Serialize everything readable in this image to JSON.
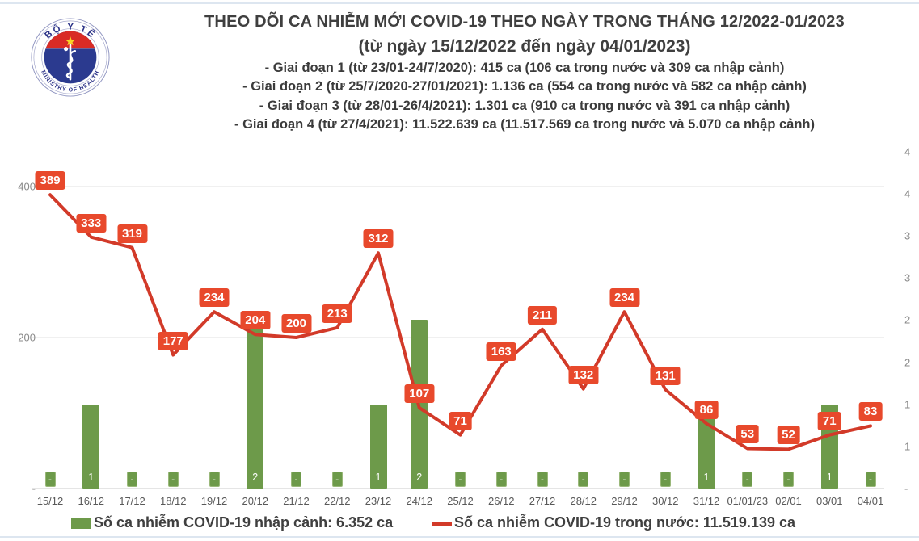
{
  "header": {
    "logo": {
      "top_text": "BỘ Y TẾ",
      "bottom_text": "MINISTRY OF HEALTH"
    },
    "title": "THEO DÕI CA NHIỄM MỚI COVID-19 THEO NGÀY TRONG THÁNG 12/2022-01/2023",
    "subtitle": "(từ ngày 15/12/2022 đến ngày 04/01/2023)",
    "phases": [
      "- Giai đoạn 1 (từ 23/01-24/7/2020): 415 ca (106 ca trong nước và 309 ca nhập cảnh)",
      "- Giai đoạn 2 (từ 25/7/2020-27/01/2021): 1.136 ca (554 ca trong nước và 582 ca nhập cảnh)",
      "- Giai đoạn 3 (từ 28/01-26/4/2021): 1.301 ca (910 ca trong nước và 391 ca nhập cảnh)",
      "- Giai đoạn 4 (từ 27/4/2021): 11.522.639 ca (11.517.569 ca trong nước và 5.070 ca nhập cảnh)"
    ]
  },
  "chart_data": {
    "type": "combo",
    "categories": [
      "15/12",
      "16/12",
      "17/12",
      "18/12",
      "19/12",
      "20/12",
      "21/12",
      "22/12",
      "23/12",
      "24/12",
      "25/12",
      "26/12",
      "27/12",
      "28/12",
      "29/12",
      "30/12",
      "31/12",
      "01/01/23",
      "02/01",
      "03/01",
      "04/01"
    ],
    "series": [
      {
        "name": "Số ca nhiễm COVID-19 nhập cảnh",
        "type": "bar",
        "axis": "right",
        "values": [
          0,
          1,
          0,
          0,
          0,
          2,
          0,
          0,
          1,
          2,
          0,
          0,
          0,
          0,
          0,
          0,
          1,
          0,
          0,
          1,
          0
        ],
        "value_labels": [
          "-",
          "1",
          "-",
          "-",
          "-",
          "2",
          "-",
          "-",
          "1",
          "2",
          "-",
          "-",
          "-",
          "-",
          "-",
          "-",
          "1",
          "-",
          "-",
          "1",
          "-"
        ],
        "color": "#6d9a4a"
      },
      {
        "name": "Số ca nhiễm COVID-19 trong nước",
        "type": "line",
        "axis": "left",
        "values": [
          389,
          333,
          319,
          177,
          234,
          204,
          200,
          213,
          312,
          107,
          71,
          163,
          211,
          132,
          234,
          131,
          86,
          53,
          52,
          71,
          83
        ],
        "value_labels": [
          "389",
          "333",
          "319",
          "177",
          "234",
          "204",
          "200",
          "213",
          "312",
          "107",
          "71",
          "163",
          "211",
          "132",
          "234",
          "131",
          "86",
          "53",
          "52",
          "71",
          "83"
        ],
        "color": "#d23a29",
        "label_bg": "#e8492c"
      }
    ],
    "left_axis": {
      "ticks": [
        {
          "label": "400",
          "value": 400
        },
        {
          "label": "200",
          "value": 200
        },
        {
          "label": "-",
          "value": 0
        }
      ],
      "max": 450
    },
    "right_axis": {
      "max": 4,
      "tick_step": 0.5,
      "labels_top_to_bottom": [
        "4",
        "4",
        "3",
        "3",
        "2",
        "2",
        "1",
        "1",
        "-"
      ]
    },
    "legend": [
      {
        "swatch": "bar",
        "label": "Số ca nhiễm COVID-19 nhập cảnh: 6.352 ca"
      },
      {
        "swatch": "line",
        "label": "Số ca nhiễm COVID-19 trong nước: 11.519.139 ca"
      }
    ],
    "grid": "horizontal",
    "colors": {
      "gridline": "#e2e2e2",
      "axis_line": "#d5d5d5",
      "axis_text": "#8a8a8a",
      "category_text": "#595959"
    }
  }
}
